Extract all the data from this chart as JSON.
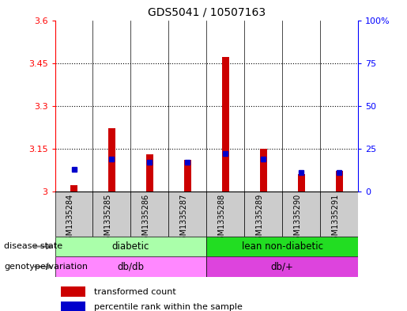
{
  "title": "GDS5041 / 10507163",
  "samples": [
    "GSM1335284",
    "GSM1335285",
    "GSM1335286",
    "GSM1335287",
    "GSM1335288",
    "GSM1335289",
    "GSM1335290",
    "GSM1335291"
  ],
  "transformed_count": [
    3.02,
    3.22,
    3.13,
    3.11,
    3.47,
    3.15,
    3.06,
    3.07
  ],
  "percentile_rank": [
    13,
    19,
    17,
    17,
    22,
    19,
    11,
    11
  ],
  "ylim_left": [
    3.0,
    3.6
  ],
  "ylim_right": [
    0,
    100
  ],
  "yticks_left": [
    3.0,
    3.15,
    3.3,
    3.45,
    3.6
  ],
  "yticks_right": [
    0,
    25,
    50,
    75,
    100
  ],
  "ytick_labels_left": [
    "3",
    "3.15",
    "3.3",
    "3.45",
    "3.6"
  ],
  "ytick_labels_right": [
    "0",
    "25",
    "50",
    "75",
    "100%"
  ],
  "disease_state": [
    {
      "label": "diabetic",
      "start": 0,
      "end": 4,
      "color": "#AAFFAA"
    },
    {
      "label": "lean non-diabetic",
      "start": 4,
      "end": 8,
      "color": "#22DD22"
    }
  ],
  "genotype": [
    {
      "label": "db/db",
      "start": 0,
      "end": 4,
      "color": "#FF88FF"
    },
    {
      "label": "db/+",
      "start": 4,
      "end": 8,
      "color": "#DD44DD"
    }
  ],
  "bar_color_red": "#CC0000",
  "dot_color_blue": "#0000CC",
  "sample_bg_color": "#CCCCCC",
  "plot_bg_color": "#FFFFFF",
  "legend_items": [
    {
      "color": "#CC0000",
      "label": "transformed count"
    },
    {
      "color": "#0000CC",
      "label": "percentile rank within the sample"
    }
  ],
  "dotted_lines": [
    3.15,
    3.3,
    3.45
  ],
  "fig_width": 5.15,
  "fig_height": 3.93
}
